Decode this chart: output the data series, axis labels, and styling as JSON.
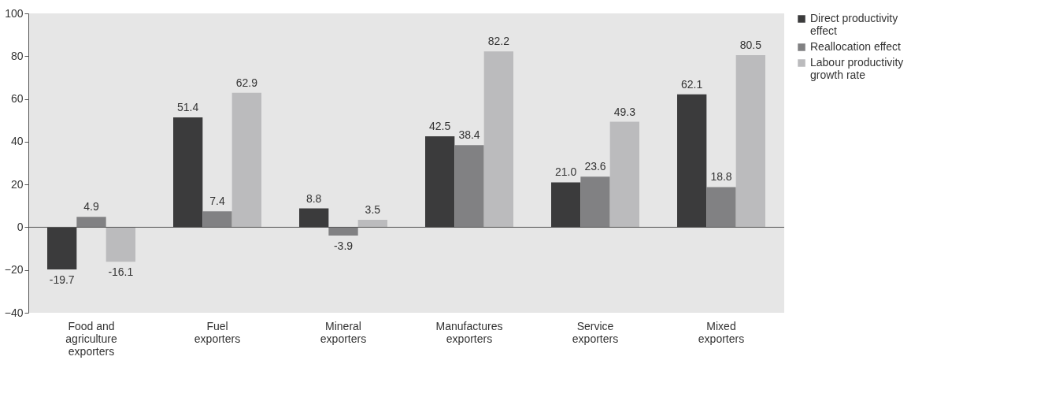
{
  "chart_data": {
    "type": "bar",
    "categories": [
      "Food and agriculture exporters",
      "Fuel exporters",
      "Mineral exporters",
      "Manufactures exporters",
      "Service exporters",
      "Mixed exporters"
    ],
    "series": [
      {
        "name": "Direct productivity effect",
        "color": "#3b3b3c",
        "values": [
          -19.7,
          51.4,
          8.8,
          42.5,
          21.0,
          62.1
        ],
        "value_labels": [
          "-19.7",
          "51.4",
          "8.8",
          "42.5",
          "21.0",
          "62.1"
        ]
      },
      {
        "name": "Reallocation effect",
        "color": "#818183",
        "values": [
          4.9,
          7.4,
          -3.9,
          38.4,
          23.6,
          18.8
        ],
        "value_labels": [
          "4.9",
          "7.4",
          "-3.9",
          "38.4",
          "23.6",
          "18.8"
        ]
      },
      {
        "name": "Labour productivity growth rate",
        "color": "#bbbbbd",
        "values": [
          -16.1,
          62.9,
          3.5,
          82.2,
          49.3,
          80.5
        ],
        "value_labels": [
          "-16.1",
          "62.9",
          "3.5",
          "82.2",
          "49.3",
          "80.5"
        ]
      }
    ],
    "ylim": [
      -40,
      100
    ],
    "yticks": [
      -40,
      -20,
      0,
      20,
      40,
      60,
      80,
      100
    ],
    "ref_lines": [
      {
        "axis": "y",
        "value": 0,
        "color": "#555555"
      }
    ],
    "grid": false,
    "legend": "top right"
  }
}
